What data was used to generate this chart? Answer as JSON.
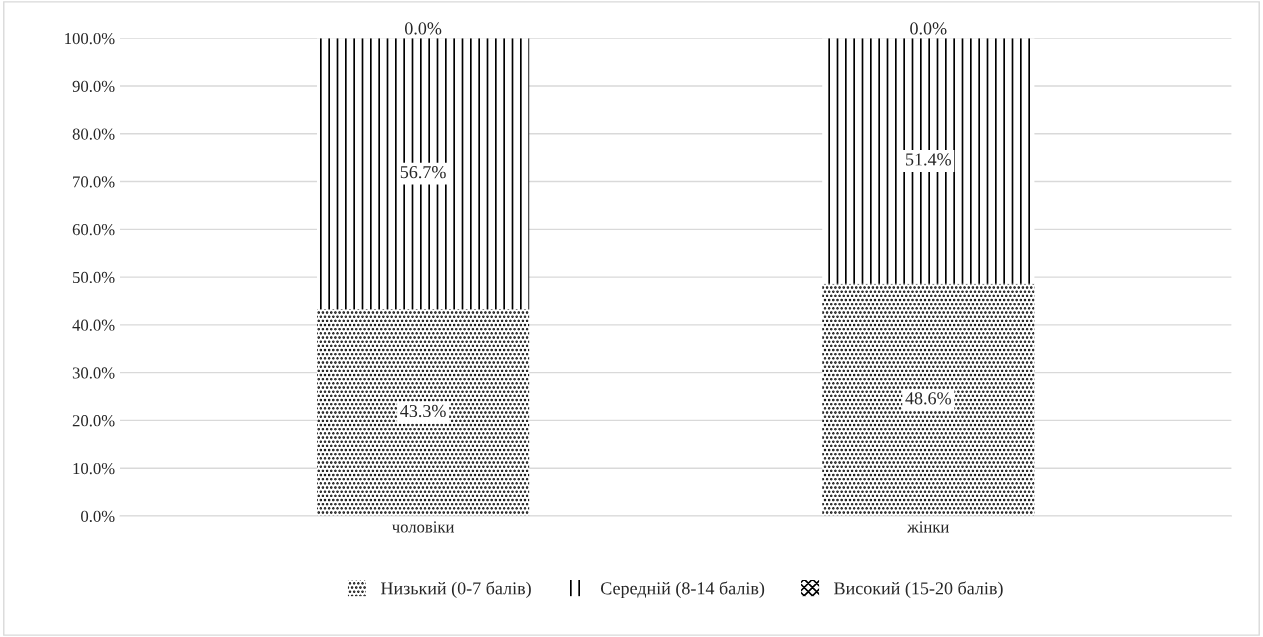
{
  "chart_data": {
    "type": "bar",
    "stacked": true,
    "categories": [
      "чоловіки",
      "жінки"
    ],
    "series": [
      {
        "name": "Низький (0-7 балів)",
        "color": "#000000",
        "values": [
          43.3,
          48.6
        ],
        "value_labels": [
          "43.3%",
          "48.6%"
        ]
      },
      {
        "name": "Середній (8-14 балів)",
        "color": "#000000",
        "values": [
          56.7,
          51.4
        ],
        "value_labels": [
          "56.7%",
          "51.4%"
        ]
      },
      {
        "name": "Високий (15-20 балів)",
        "color": "#000000",
        "values": [
          0.0,
          0.0
        ],
        "value_labels": [
          "0.0%",
          "0.0%"
        ]
      }
    ],
    "ylim": [
      0,
      100
    ],
    "yticks": [
      {
        "value": 0,
        "label": "0.0%"
      },
      {
        "value": 10,
        "label": "10.0%"
      },
      {
        "value": 20,
        "label": "20.0%"
      },
      {
        "value": 30,
        "label": "30.0%"
      },
      {
        "value": 40,
        "label": "40.0%"
      },
      {
        "value": 50,
        "label": "50.0%"
      },
      {
        "value": 60,
        "label": "60.0%"
      },
      {
        "value": 70,
        "label": "70.0%"
      },
      {
        "value": 80,
        "label": "80.0%"
      },
      {
        "value": 90,
        "label": "90.0%"
      },
      {
        "value": 100,
        "label": "100.0%"
      }
    ],
    "grid": "y",
    "legend": "bottom"
  }
}
